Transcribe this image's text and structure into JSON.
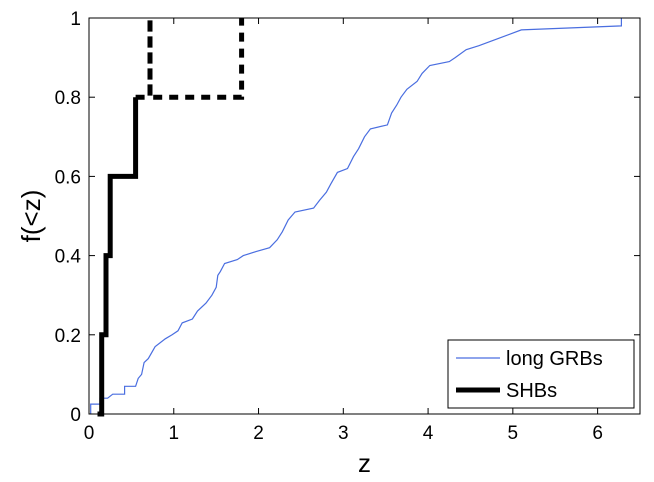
{
  "chart_data": {
    "type": "line",
    "xlabel": "z",
    "ylabel": "f(<z)",
    "xlim": [
      0,
      6.5
    ],
    "ylim": [
      0,
      1
    ],
    "xticks": [
      0,
      1,
      2,
      3,
      4,
      5,
      6
    ],
    "yticks": [
      0,
      0.2,
      0.4,
      0.6,
      0.8,
      1
    ],
    "xtick_labels": [
      "0",
      "1",
      "2",
      "3",
      "4",
      "5",
      "6"
    ],
    "ytick_labels": [
      "0",
      "0.2",
      "0.4",
      "0.6",
      "0.8",
      "1"
    ],
    "grid": false,
    "legend_position": "bottom-right",
    "series": [
      {
        "name": "long GRBs",
        "color": "#4a6ee0",
        "style": "thin-step",
        "points": [
          [
            0.02,
            0.0
          ],
          [
            0.02,
            0.025
          ],
          [
            0.13,
            0.025
          ],
          [
            0.13,
            0.04
          ],
          [
            0.22,
            0.04
          ],
          [
            0.28,
            0.05
          ],
          [
            0.42,
            0.05
          ],
          [
            0.42,
            0.07
          ],
          [
            0.55,
            0.07
          ],
          [
            0.58,
            0.09
          ],
          [
            0.62,
            0.1
          ],
          [
            0.65,
            0.13
          ],
          [
            0.7,
            0.14
          ],
          [
            0.78,
            0.17
          ],
          [
            0.9,
            0.19
          ],
          [
            0.98,
            0.2
          ],
          [
            1.05,
            0.21
          ],
          [
            1.1,
            0.23
          ],
          [
            1.22,
            0.24
          ],
          [
            1.28,
            0.26
          ],
          [
            1.38,
            0.28
          ],
          [
            1.45,
            0.3
          ],
          [
            1.5,
            0.32
          ],
          [
            1.52,
            0.35
          ],
          [
            1.55,
            0.36
          ],
          [
            1.6,
            0.38
          ],
          [
            1.75,
            0.39
          ],
          [
            1.82,
            0.4
          ],
          [
            1.97,
            0.41
          ],
          [
            2.13,
            0.42
          ],
          [
            2.22,
            0.44
          ],
          [
            2.28,
            0.46
          ],
          [
            2.35,
            0.49
          ],
          [
            2.43,
            0.51
          ],
          [
            2.65,
            0.52
          ],
          [
            2.72,
            0.54
          ],
          [
            2.8,
            0.56
          ],
          [
            2.85,
            0.58
          ],
          [
            2.93,
            0.61
          ],
          [
            3.05,
            0.62
          ],
          [
            3.12,
            0.65
          ],
          [
            3.18,
            0.67
          ],
          [
            3.25,
            0.7
          ],
          [
            3.32,
            0.72
          ],
          [
            3.52,
            0.73
          ],
          [
            3.57,
            0.76
          ],
          [
            3.63,
            0.78
          ],
          [
            3.68,
            0.8
          ],
          [
            3.75,
            0.82
          ],
          [
            3.87,
            0.84
          ],
          [
            3.93,
            0.86
          ],
          [
            4.02,
            0.88
          ],
          [
            4.25,
            0.89
          ],
          [
            4.32,
            0.9
          ],
          [
            4.45,
            0.92
          ],
          [
            4.6,
            0.93
          ],
          [
            4.85,
            0.95
          ],
          [
            5.1,
            0.97
          ],
          [
            6.28,
            0.98
          ],
          [
            6.28,
            1.0
          ]
        ]
      },
      {
        "name": "SHBs",
        "color": "#000000",
        "style": "thick-step",
        "points": [
          [
            0.1,
            0.0
          ],
          [
            0.15,
            0.0
          ],
          [
            0.15,
            0.2
          ],
          [
            0.2,
            0.2
          ],
          [
            0.2,
            0.4
          ],
          [
            0.25,
            0.4
          ],
          [
            0.25,
            0.6
          ],
          [
            0.55,
            0.6
          ],
          [
            0.55,
            0.8
          ]
        ]
      },
      {
        "name": "",
        "color": "#000000",
        "style": "thick-dashed-step",
        "points": [
          [
            0.55,
            0.8
          ],
          [
            0.72,
            0.8
          ],
          [
            0.72,
            1.0
          ],
          [
            0.72,
            0.8
          ],
          [
            1.8,
            0.8
          ],
          [
            1.8,
            1.0
          ]
        ]
      }
    ]
  }
}
